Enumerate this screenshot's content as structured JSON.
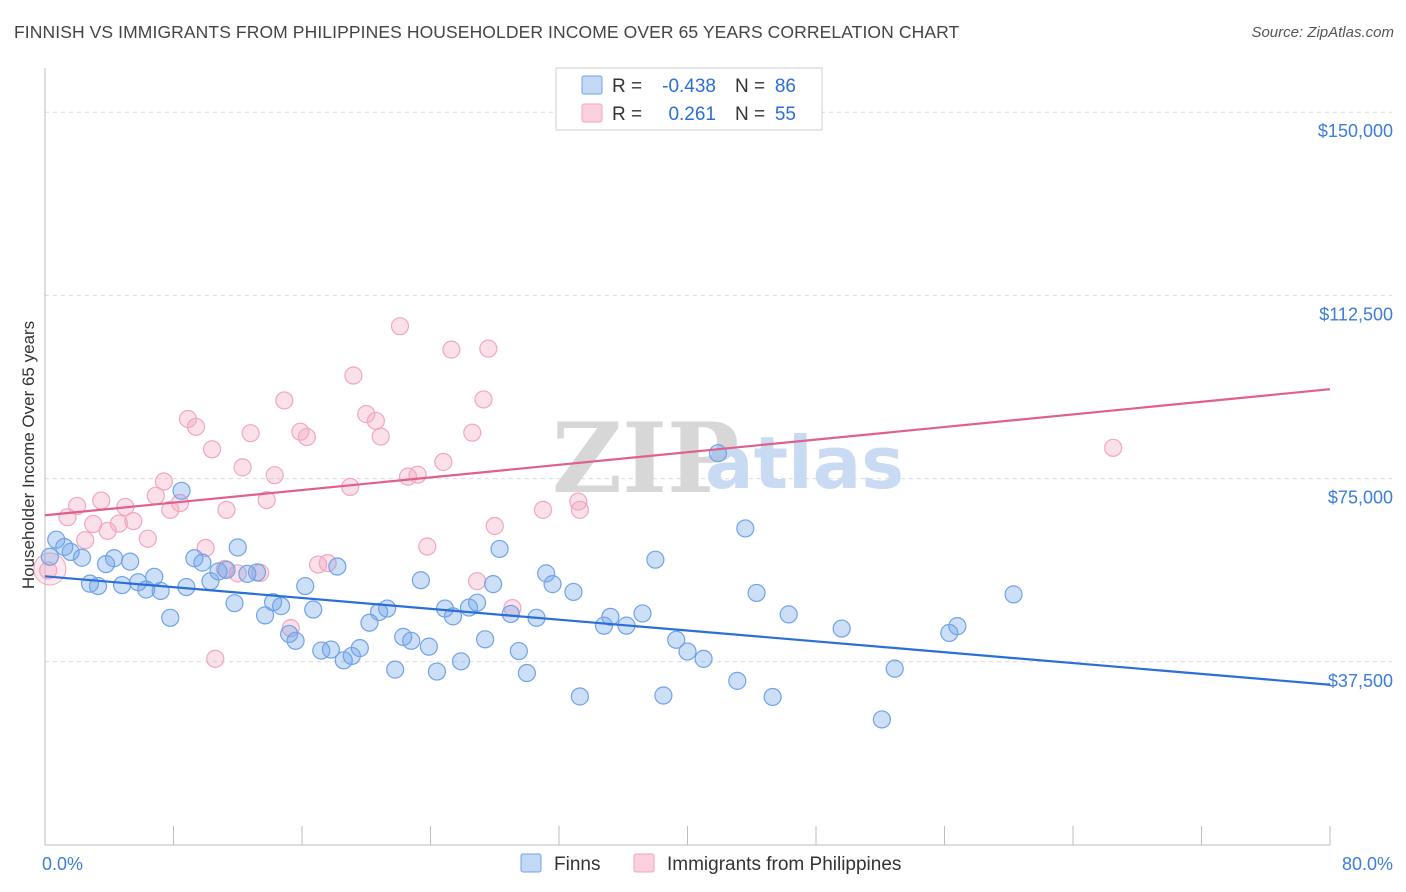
{
  "title": "FINNISH VS IMMIGRANTS FROM PHILIPPINES HOUSEHOLDER INCOME OVER 65 YEARS CORRELATION CHART",
  "source": "Source: ZipAtlas.com",
  "watermark": {
    "zip": "ZIP",
    "atlas": "atlas"
  },
  "colors": {
    "finns": "#6fa3e8",
    "finns_line": "#2a6fd6",
    "philippines": "#f2a6bf",
    "philippines_line": "#e0608a",
    "tick_text": "#3b7dd8",
    "grid": "#d9d9d9"
  },
  "legend": {
    "rows": [
      {
        "r_label": "R =",
        "r_value": "-0.438",
        "n_label": "N =",
        "n_value": "86"
      },
      {
        "r_label": "R =",
        "r_value": "0.261",
        "n_label": "N =",
        "n_value": "55"
      }
    ]
  },
  "chart_data": {
    "type": "scatter",
    "xlabel": "",
    "ylabel": "Householder Income Over 65 years",
    "xlim": [
      0,
      80
    ],
    "ylim": [
      0,
      157000
    ],
    "x_tick_labels": [
      "0.0%",
      "80.0%"
    ],
    "y_ticks": [
      37500,
      75000,
      112500,
      150000
    ],
    "y_tick_labels": [
      "$37,500",
      "$75,000",
      "$112,500",
      "$150,000"
    ],
    "grid": "horizontal dashed",
    "legend_position": "bottom-center",
    "series": [
      {
        "name": "Finns",
        "trend": {
          "x": [
            0,
            80
          ],
          "y": [
            55000,
            32800
          ]
        },
        "points": [
          [
            0.3,
            59000
          ],
          [
            0.7,
            62500
          ],
          [
            1.2,
            61000
          ],
          [
            1.6,
            60000
          ],
          [
            2.3,
            58800
          ],
          [
            2.8,
            53500
          ],
          [
            3.3,
            53000
          ],
          [
            3.8,
            57500
          ],
          [
            4.3,
            58700
          ],
          [
            4.8,
            53200
          ],
          [
            5.3,
            58000
          ],
          [
            5.8,
            53800
          ],
          [
            6.3,
            52300
          ],
          [
            6.8,
            54900
          ],
          [
            7.2,
            52000
          ],
          [
            7.8,
            46500
          ],
          [
            8.5,
            72500
          ],
          [
            8.8,
            52800
          ],
          [
            9.3,
            58700
          ],
          [
            9.8,
            57800
          ],
          [
            10.3,
            54000
          ],
          [
            10.8,
            56000
          ],
          [
            11.3,
            56300
          ],
          [
            11.8,
            49500
          ],
          [
            12.0,
            60900
          ],
          [
            12.6,
            55500
          ],
          [
            13.2,
            55800
          ],
          [
            13.7,
            47000
          ],
          [
            14.2,
            49700
          ],
          [
            14.7,
            48900
          ],
          [
            15.2,
            43200
          ],
          [
            15.6,
            41800
          ],
          [
            16.2,
            53000
          ],
          [
            16.7,
            48200
          ],
          [
            17.2,
            39800
          ],
          [
            17.8,
            40000
          ],
          [
            18.2,
            57000
          ],
          [
            18.6,
            37800
          ],
          [
            19.1,
            38700
          ],
          [
            19.6,
            40300
          ],
          [
            20.2,
            45500
          ],
          [
            20.8,
            47700
          ],
          [
            21.3,
            48400
          ],
          [
            21.8,
            35900
          ],
          [
            22.3,
            42600
          ],
          [
            22.8,
            41800
          ],
          [
            23.4,
            54200
          ],
          [
            23.9,
            40600
          ],
          [
            24.4,
            35500
          ],
          [
            24.9,
            48400
          ],
          [
            25.4,
            46800
          ],
          [
            25.9,
            37600
          ],
          [
            26.4,
            48600
          ],
          [
            26.9,
            49600
          ],
          [
            27.4,
            42100
          ],
          [
            27.9,
            53400
          ],
          [
            28.3,
            60600
          ],
          [
            29.0,
            47300
          ],
          [
            29.5,
            39700
          ],
          [
            30.0,
            35200
          ],
          [
            30.6,
            46500
          ],
          [
            31.2,
            55600
          ],
          [
            31.6,
            53400
          ],
          [
            32.9,
            51800
          ],
          [
            33.3,
            30400
          ],
          [
            34.8,
            44900
          ],
          [
            35.2,
            46700
          ],
          [
            36.2,
            44900
          ],
          [
            37.2,
            47400
          ],
          [
            38.0,
            58400
          ],
          [
            38.5,
            30600
          ],
          [
            39.3,
            42000
          ],
          [
            40.0,
            39600
          ],
          [
            41.0,
            38100
          ],
          [
            41.9,
            80200
          ],
          [
            43.1,
            33600
          ],
          [
            43.6,
            64800
          ],
          [
            44.3,
            51600
          ],
          [
            45.3,
            30300
          ],
          [
            46.3,
            47200
          ],
          [
            49.6,
            44300
          ],
          [
            52.1,
            25700
          ],
          [
            52.9,
            36100
          ],
          [
            56.3,
            43400
          ],
          [
            56.8,
            44800
          ],
          [
            60.3,
            51300
          ]
        ]
      },
      {
        "name": "Immigrants from Philippines",
        "trend": {
          "x": [
            0,
            80
          ],
          "y": [
            67500,
            93300
          ]
        },
        "points": [
          [
            0.2,
            56200
          ],
          [
            1.4,
            67100
          ],
          [
            2.0,
            69400
          ],
          [
            2.5,
            62400
          ],
          [
            3.0,
            65700
          ],
          [
            3.5,
            70500
          ],
          [
            3.9,
            64300
          ],
          [
            4.6,
            65800
          ],
          [
            5.0,
            69200
          ],
          [
            5.5,
            66300
          ],
          [
            6.4,
            62700
          ],
          [
            6.9,
            71500
          ],
          [
            7.4,
            74400
          ],
          [
            7.8,
            68600
          ],
          [
            8.4,
            70000
          ],
          [
            8.9,
            87200
          ],
          [
            9.4,
            85600
          ],
          [
            10.0,
            60800
          ],
          [
            10.4,
            81000
          ],
          [
            11.3,
            68600
          ],
          [
            12.0,
            55600
          ],
          [
            12.3,
            77300
          ],
          [
            12.8,
            84300
          ],
          [
            13.4,
            55700
          ],
          [
            13.8,
            70600
          ],
          [
            14.3,
            75700
          ],
          [
            14.9,
            91000
          ],
          [
            15.3,
            44400
          ],
          [
            15.9,
            84600
          ],
          [
            16.3,
            83500
          ],
          [
            17.0,
            57400
          ],
          [
            17.6,
            57700
          ],
          [
            19.0,
            73300
          ],
          [
            19.2,
            96100
          ],
          [
            20.0,
            88200
          ],
          [
            20.6,
            86800
          ],
          [
            20.9,
            83600
          ],
          [
            22.1,
            106200
          ],
          [
            22.6,
            75400
          ],
          [
            23.2,
            75800
          ],
          [
            23.8,
            61100
          ],
          [
            24.8,
            78400
          ],
          [
            25.3,
            101400
          ],
          [
            26.6,
            84400
          ],
          [
            27.3,
            91200
          ],
          [
            26.9,
            54000
          ],
          [
            28.0,
            65300
          ],
          [
            27.6,
            101600
          ],
          [
            29.1,
            48500
          ],
          [
            31.0,
            68600
          ],
          [
            33.2,
            70300
          ],
          [
            33.3,
            68600
          ],
          [
            10.6,
            38100
          ],
          [
            11.2,
            56500
          ],
          [
            66.5,
            81300
          ]
        ]
      }
    ]
  }
}
